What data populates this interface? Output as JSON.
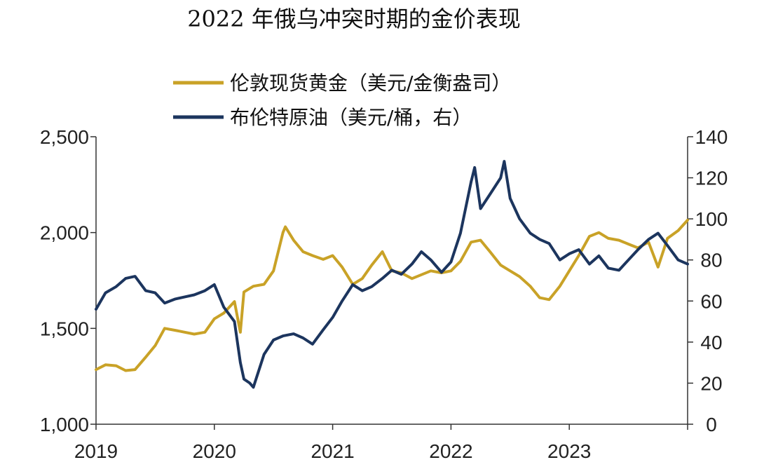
{
  "chart_data": {
    "type": "line",
    "title": "2022 年俄乌冲突时期的金价表现",
    "legend_position": "top",
    "grid": false,
    "x_ticks": [
      "2019",
      "2020",
      "2021",
      "2022",
      "2023"
    ],
    "x_range": [
      2019.0,
      2024.0
    ],
    "y_left": {
      "range": [
        1000,
        2500
      ],
      "ticks": [
        "1,000",
        "1,500",
        "2,000",
        "2,500"
      ],
      "tick_values": [
        1000,
        1500,
        2000,
        2500
      ]
    },
    "y_right": {
      "range": [
        0,
        140
      ],
      "ticks": [
        "0",
        "20",
        "40",
        "60",
        "80",
        "100",
        "120",
        "140"
      ],
      "tick_values": [
        0,
        20,
        40,
        60,
        80,
        100,
        120,
        140
      ]
    },
    "series": [
      {
        "name": "伦敦现货黄金（美元/金衡盎司）",
        "axis": "left",
        "color": "#C9A227",
        "x": [
          2019.0,
          2019.08,
          2019.17,
          2019.25,
          2019.33,
          2019.42,
          2019.5,
          2019.58,
          2019.67,
          2019.75,
          2019.83,
          2019.92,
          2020.0,
          2020.08,
          2020.17,
          2020.22,
          2020.25,
          2020.33,
          2020.42,
          2020.5,
          2020.58,
          2020.6,
          2020.67,
          2020.75,
          2020.83,
          2020.92,
          2021.0,
          2021.08,
          2021.17,
          2021.25,
          2021.33,
          2021.42,
          2021.5,
          2021.58,
          2021.67,
          2021.75,
          2021.83,
          2021.92,
          2022.0,
          2022.08,
          2022.17,
          2022.25,
          2022.33,
          2022.42,
          2022.5,
          2022.58,
          2022.67,
          2022.75,
          2022.83,
          2022.92,
          2023.0,
          2023.08,
          2023.17,
          2023.25,
          2023.33,
          2023.42,
          2023.5,
          2023.58,
          2023.67,
          2023.75,
          2023.83,
          2023.92,
          2024.0
        ],
        "values": [
          1285,
          1310,
          1305,
          1280,
          1285,
          1350,
          1410,
          1500,
          1490,
          1480,
          1470,
          1480,
          1550,
          1580,
          1640,
          1480,
          1690,
          1720,
          1730,
          1800,
          2000,
          2030,
          1960,
          1900,
          1880,
          1860,
          1880,
          1820,
          1730,
          1760,
          1830,
          1900,
          1800,
          1790,
          1760,
          1780,
          1800,
          1790,
          1800,
          1850,
          1950,
          1960,
          1900,
          1830,
          1800,
          1770,
          1720,
          1660,
          1650,
          1720,
          1800,
          1880,
          1980,
          2000,
          1970,
          1960,
          1940,
          1920,
          1950,
          1820,
          1970,
          2010,
          2065
        ]
      },
      {
        "name": "布伦特原油（美元/桶，右）",
        "axis": "right",
        "color": "#1C355E",
        "x": [
          2019.0,
          2019.08,
          2019.17,
          2019.25,
          2019.33,
          2019.42,
          2019.5,
          2019.58,
          2019.67,
          2019.75,
          2019.83,
          2019.92,
          2020.0,
          2020.08,
          2020.17,
          2020.22,
          2020.25,
          2020.3,
          2020.33,
          2020.42,
          2020.5,
          2020.58,
          2020.67,
          2020.75,
          2020.83,
          2020.92,
          2021.0,
          2021.08,
          2021.17,
          2021.25,
          2021.33,
          2021.42,
          2021.5,
          2021.58,
          2021.67,
          2021.75,
          2021.83,
          2021.92,
          2022.0,
          2022.08,
          2022.17,
          2022.2,
          2022.25,
          2022.33,
          2022.42,
          2022.45,
          2022.5,
          2022.58,
          2022.67,
          2022.75,
          2022.83,
          2022.92,
          2023.0,
          2023.08,
          2023.17,
          2023.25,
          2023.33,
          2023.42,
          2023.5,
          2023.58,
          2023.67,
          2023.75,
          2023.83,
          2023.92,
          2024.0
        ],
        "values": [
          56,
          64,
          67,
          71,
          72,
          65,
          64,
          59,
          61,
          62,
          63,
          65,
          68,
          57,
          50,
          30,
          22,
          20,
          18,
          34,
          41,
          43,
          44,
          42,
          39,
          46,
          52,
          60,
          68,
          65,
          67,
          71,
          75,
          73,
          78,
          84,
          80,
          74,
          79,
          93,
          118,
          125,
          105,
          112,
          120,
          128,
          110,
          100,
          93,
          90,
          88,
          80,
          83,
          85,
          78,
          82,
          76,
          75,
          80,
          85,
          90,
          93,
          87,
          80,
          78
        ]
      }
    ]
  }
}
